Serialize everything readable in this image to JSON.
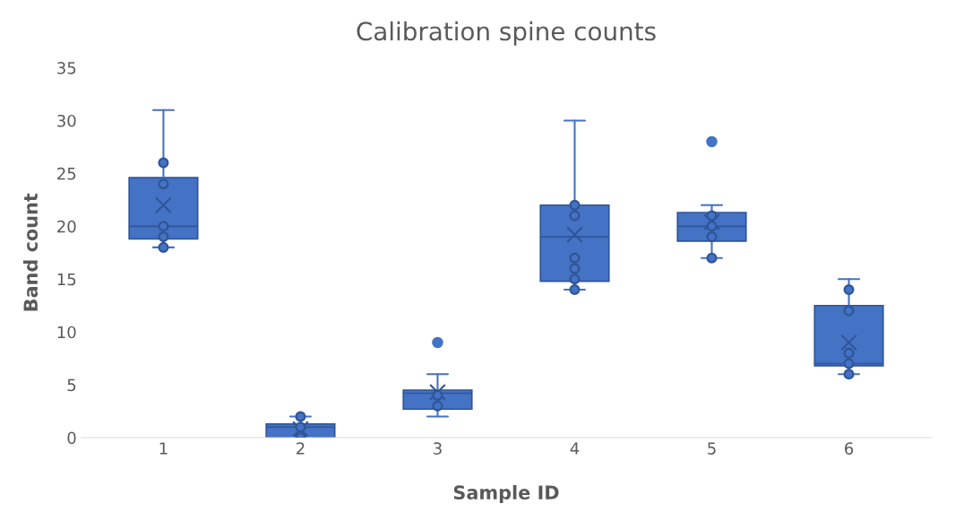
{
  "chart_data": {
    "type": "box",
    "title": "Calibration spine counts",
    "xlabel": "Sample ID",
    "ylabel": "Band count",
    "categories": [
      "1",
      "2",
      "3",
      "4",
      "5",
      "6"
    ],
    "color": "#4472c4",
    "boxes": [
      {
        "low": 18,
        "q1": 18.8,
        "median": 20,
        "q3": 24.6,
        "high": 31,
        "mean": 22
      },
      {
        "low": 0,
        "q1": 0,
        "median": 1,
        "q3": 1.3,
        "high": 2,
        "mean": 0.8
      },
      {
        "low": 2,
        "q1": 2.7,
        "median": 4.2,
        "q3": 4.5,
        "high": 6,
        "mean": 4.3,
        "outliers": [
          9
        ]
      },
      {
        "low": 14,
        "q1": 14.8,
        "median": 19,
        "q3": 22,
        "high": 30,
        "mean": 19.2
      },
      {
        "low": 17,
        "q1": 18.6,
        "median": 20,
        "q3": 21.3,
        "high": 22,
        "mean": 20.4,
        "outliers": [
          28
        ]
      },
      {
        "low": 6,
        "q1": 6.8,
        "median": 7,
        "q3": 12.5,
        "high": 15,
        "mean": 9
      }
    ],
    "series": [
      {
        "type": "scatter",
        "color": "#2f5597",
        "marker": "circle",
        "x": [
          "1",
          "1",
          "1",
          "1",
          "1",
          "2",
          "2",
          "2",
          "3",
          "3",
          "4",
          "4",
          "4",
          "4",
          "4",
          "4",
          "5",
          "5",
          "5",
          "5",
          "6",
          "6",
          "6",
          "6",
          "6"
        ],
        "values": [
          26,
          24,
          20,
          19,
          18,
          2,
          1,
          0,
          4,
          3,
          22,
          21,
          17,
          16,
          15,
          14,
          21,
          20,
          19,
          17,
          14,
          12,
          8,
          7,
          6
        ]
      }
    ],
    "ylim": [
      0,
      35
    ],
    "yticks": [
      0,
      5,
      10,
      15,
      20,
      25,
      30,
      35
    ],
    "grid": false,
    "legend": false
  }
}
